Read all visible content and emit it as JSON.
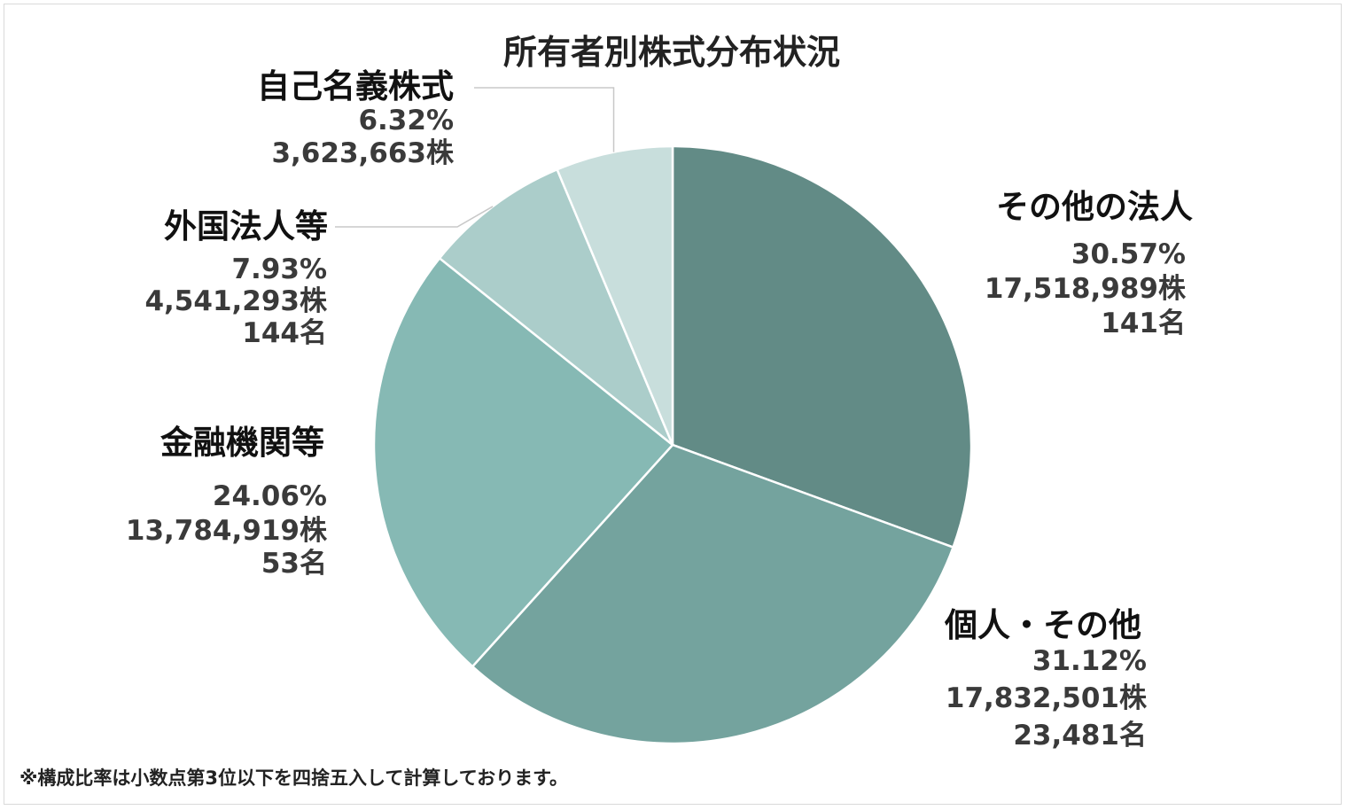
{
  "chart_data": {
    "type": "pie",
    "title": "所有者別株式分布状況",
    "slices": [
      {
        "name": "その他の法人",
        "percent_label": "30.57%",
        "value": 30.57,
        "shares_label": "17,518,989株",
        "holders_label": "141名",
        "color": "#628b86"
      },
      {
        "name": "個人・その他",
        "percent_label": "31.12%",
        "value": 31.12,
        "shares_label": "17,832,501株",
        "holders_label": "23,481名",
        "color": "#74a39e"
      },
      {
        "name": "金融機関等",
        "percent_label": "24.06%",
        "value": 24.06,
        "shares_label": "13,784,919株",
        "holders_label": "53名",
        "color": "#86b9b4"
      },
      {
        "name": "外国法人等",
        "percent_label": "7.93%",
        "value": 7.93,
        "shares_label": "4,541,293株",
        "holders_label": "144名",
        "color": "#abcdca"
      },
      {
        "name": "自己名義株式",
        "percent_label": "6.32%",
        "value": 6.32,
        "shares_label": "3,623,663株",
        "holders_label": "",
        "color": "#c8dedc"
      }
    ],
    "start_angle": "12 o'clock",
    "direction": "clockwise",
    "legend": "none"
  },
  "footnote": "※構成比率は小数点第3位以下を四捨五入して計算しております。"
}
